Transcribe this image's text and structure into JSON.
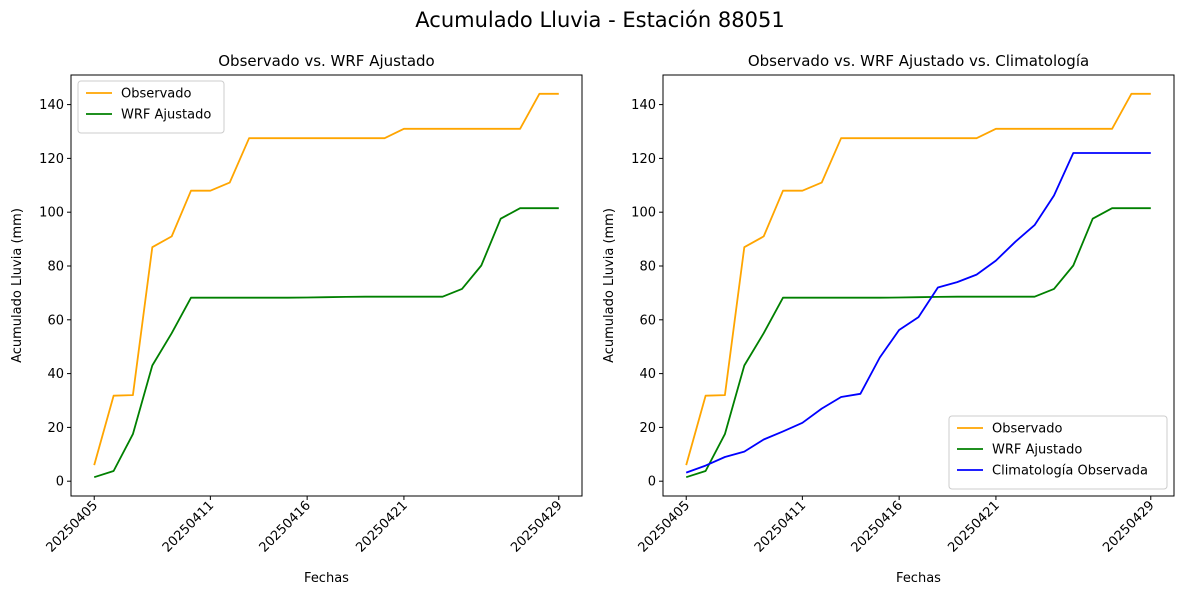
{
  "figure": {
    "suptitle": "Acumulado Lluvia - Estación 88051"
  },
  "chart_data": [
    {
      "type": "line",
      "title": "Observado vs. WRF Ajustado",
      "xlabel": "Fechas",
      "ylabel": "Acumulado Lluvia (mm)",
      "x": [
        "20250405",
        "20250406",
        "20250407",
        "20250408",
        "20250409",
        "20250410",
        "20250411",
        "20250412",
        "20250413",
        "20250414",
        "20250415",
        "20250416",
        "20250417",
        "20250418",
        "20250419",
        "20250420",
        "20250421",
        "20250422",
        "20250423",
        "20250424",
        "20250425",
        "20250426",
        "20250427",
        "20250428",
        "20250429"
      ],
      "xticks": [
        "20250405",
        "20250411",
        "20250416",
        "20250421",
        "20250429"
      ],
      "yticks": [
        0,
        20,
        40,
        60,
        80,
        100,
        120,
        140
      ],
      "ylim": [
        -5.5,
        151
      ],
      "legend": "upper left",
      "series": [
        {
          "name": "Observado",
          "color": "#ffa500",
          "values": [
            6.0,
            31.8,
            32.0,
            87.0,
            91.0,
            108.0,
            108.0,
            111.0,
            127.5,
            127.5,
            127.5,
            127.5,
            127.5,
            127.5,
            127.5,
            127.5,
            131.0,
            131.0,
            131.0,
            131.0,
            131.0,
            131.0,
            131.0,
            144.0,
            144.0
          ]
        },
        {
          "name": "WRF Ajustado",
          "color": "#008000",
          "values": [
            1.5,
            3.8,
            17.5,
            43.0,
            55.0,
            68.2,
            68.2,
            68.2,
            68.2,
            68.2,
            68.2,
            68.3,
            68.4,
            68.5,
            68.6,
            68.6,
            68.6,
            68.6,
            68.6,
            71.5,
            80.2,
            97.6,
            101.5,
            101.5,
            101.5
          ]
        }
      ]
    },
    {
      "type": "line",
      "title": "Observado vs. WRF Ajustado vs. Climatología",
      "xlabel": "Fechas",
      "ylabel": "Acumulado Lluvia (mm)",
      "x": [
        "20250405",
        "20250406",
        "20250407",
        "20250408",
        "20250409",
        "20250410",
        "20250411",
        "20250412",
        "20250413",
        "20250414",
        "20250415",
        "20250416",
        "20250417",
        "20250418",
        "20250419",
        "20250420",
        "20250421",
        "20250422",
        "20250423",
        "20250424",
        "20250425",
        "20250426",
        "20250427",
        "20250428",
        "20250429"
      ],
      "xticks": [
        "20250405",
        "20250411",
        "20250416",
        "20250421",
        "20250429"
      ],
      "yticks": [
        0,
        20,
        40,
        60,
        80,
        100,
        120,
        140
      ],
      "ylim": [
        -5.5,
        151
      ],
      "legend": "lower right",
      "series": [
        {
          "name": "Observado",
          "color": "#ffa500",
          "values": [
            6.0,
            31.8,
            32.0,
            87.0,
            91.0,
            108.0,
            108.0,
            111.0,
            127.5,
            127.5,
            127.5,
            127.5,
            127.5,
            127.5,
            127.5,
            127.5,
            131.0,
            131.0,
            131.0,
            131.0,
            131.0,
            131.0,
            131.0,
            144.0,
            144.0
          ]
        },
        {
          "name": "WRF Ajustado",
          "color": "#008000",
          "values": [
            1.5,
            3.8,
            17.5,
            43.0,
            55.0,
            68.2,
            68.2,
            68.2,
            68.2,
            68.2,
            68.2,
            68.3,
            68.4,
            68.5,
            68.6,
            68.6,
            68.6,
            68.6,
            68.6,
            71.5,
            80.2,
            97.6,
            101.5,
            101.5,
            101.5
          ]
        },
        {
          "name": "Climatología Observada",
          "color": "#0000ff",
          "values": [
            3.2,
            5.8,
            9.0,
            11.0,
            15.5,
            18.5,
            21.7,
            27.0,
            31.3,
            32.5,
            46.0,
            56.2,
            61.0,
            72.0,
            74.0,
            76.8,
            82.0,
            89.0,
            95.2,
            106.2,
            122.0,
            122.0,
            122.0,
            122.0,
            122.0
          ]
        }
      ]
    }
  ]
}
